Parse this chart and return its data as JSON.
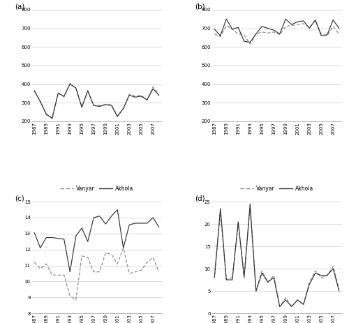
{
  "years": [
    1987,
    1988,
    1989,
    1990,
    1991,
    1992,
    1993,
    1994,
    1995,
    1996,
    1997,
    1998,
    1999,
    2000,
    2001,
    2002,
    2003,
    2004,
    2005,
    2006,
    2007,
    2008
  ],
  "a_vanyar": [
    360,
    310,
    235,
    220,
    355,
    330,
    405,
    375,
    280,
    360,
    285,
    285,
    290,
    290,
    230,
    265,
    345,
    335,
    340,
    315,
    385,
    345
  ],
  "a_akhola": [
    365,
    305,
    240,
    215,
    350,
    335,
    400,
    380,
    275,
    365,
    285,
    280,
    290,
    285,
    225,
    270,
    340,
    330,
    335,
    315,
    375,
    340
  ],
  "b_vanyar": [
    670,
    655,
    715,
    695,
    670,
    665,
    615,
    670,
    680,
    675,
    680,
    665,
    710,
    715,
    720,
    725,
    705,
    740,
    670,
    660,
    710,
    670
  ],
  "b_akhola": [
    695,
    660,
    750,
    695,
    705,
    630,
    625,
    670,
    710,
    700,
    690,
    670,
    750,
    720,
    735,
    740,
    700,
    745,
    660,
    665,
    745,
    700
  ],
  "c_vanyar": [
    11.2,
    10.8,
    11.1,
    10.4,
    10.4,
    10.4,
    9.1,
    8.85,
    11.6,
    11.5,
    10.6,
    10.6,
    11.8,
    11.7,
    11.1,
    12.1,
    10.5,
    10.6,
    10.7,
    11.2,
    11.5,
    10.6
  ],
  "c_akhola": [
    13.05,
    12.1,
    12.75,
    12.75,
    12.7,
    12.65,
    10.6,
    12.85,
    13.35,
    12.5,
    14.0,
    14.1,
    13.6,
    14.1,
    14.5,
    12.1,
    13.55,
    13.65,
    13.65,
    13.65,
    14.0,
    13.4
  ],
  "d_vanyar": [
    8.5,
    22.5,
    7.5,
    8.0,
    20.0,
    8.5,
    23.5,
    5.0,
    9.5,
    7.0,
    8.5,
    1.5,
    3.5,
    1.5,
    3.0,
    2.0,
    7.0,
    9.5,
    8.0,
    8.5,
    10.5,
    5.5
  ],
  "d_akhola": [
    8.0,
    23.5,
    7.5,
    7.5,
    20.5,
    8.0,
    24.5,
    5.0,
    9.0,
    7.0,
    8.0,
    1.5,
    3.0,
    1.5,
    3.0,
    2.0,
    6.5,
    9.0,
    8.5,
    8.5,
    10.0,
    5.0
  ],
  "line_color_vanyar": "#888888",
  "line_color_akhola": "#333333",
  "background_color": "#ffffff",
  "xtick_years": [
    1987,
    1989,
    1991,
    1993,
    1995,
    1997,
    1999,
    2001,
    2003,
    2005,
    2007
  ]
}
